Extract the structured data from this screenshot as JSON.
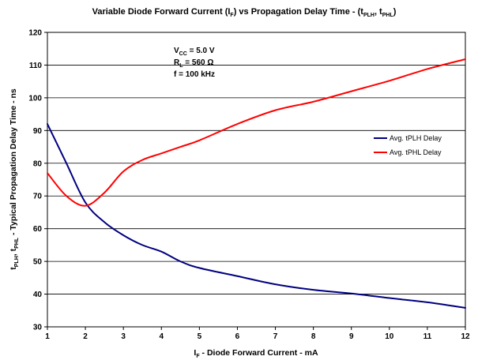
{
  "chart_data": {
    "type": "line",
    "title": {
      "prefix": "Variable Diode Forward Current (I",
      "sub1": "F",
      "middle": ") vs Propagation Delay Time - (t",
      "sub2": "PLH",
      "sep": ", t",
      "sub3": "PHL",
      "suffix": ")"
    },
    "xlabel": {
      "main": "I",
      "sub": "F",
      "rest": " - Diode Forward Current - mA"
    },
    "ylabel": {
      "t1": "t",
      "s1": "PLH",
      "t2": ", t",
      "s2": "PHL",
      "t3": " - Typical Propagation Delay Time - ns"
    },
    "xlim": [
      1,
      12
    ],
    "ylim": [
      30,
      120
    ],
    "xticks": [
      "1",
      "2",
      "3",
      "4",
      "5",
      "6",
      "7",
      "8",
      "9",
      "10",
      "11",
      "12"
    ],
    "yticks": [
      "30",
      "40",
      "50",
      "60",
      "70",
      "80",
      "90",
      "100",
      "110",
      "120"
    ],
    "grid": {
      "horizontal": true,
      "vertical": false
    },
    "legend_position": "right",
    "annotation": {
      "vcc": {
        "main": "V",
        "sub": "CC",
        "rest": " = 5.0 V"
      },
      "rl": {
        "main": "R",
        "sub": "L",
        "rest": " = 560 Ω"
      },
      "f": "f = 100 kHz"
    },
    "series": [
      {
        "name": "Avg. tPLH Delay",
        "color": "#000080",
        "x": [
          1,
          1.5,
          2,
          2.5,
          3,
          3.5,
          4,
          4.5,
          5,
          6,
          7,
          8,
          9,
          10,
          11,
          12
        ],
        "values": [
          92,
          80,
          68,
          62,
          58,
          55,
          53,
          50,
          48,
          45.5,
          43,
          41.3,
          40.2,
          38.8,
          37.5,
          35.8
        ]
      },
      {
        "name": "Avg. tPHL Delay",
        "color": "#ff0000",
        "x": [
          1,
          1.5,
          2,
          2.5,
          3,
          3.5,
          4,
          4.5,
          5,
          6,
          7,
          8,
          9,
          10,
          11,
          12
        ],
        "values": [
          77,
          70,
          67,
          71,
          77.5,
          81,
          83,
          85,
          87,
          92,
          96.2,
          98.8,
          102,
          105.2,
          108.8,
          111.8
        ]
      }
    ]
  }
}
